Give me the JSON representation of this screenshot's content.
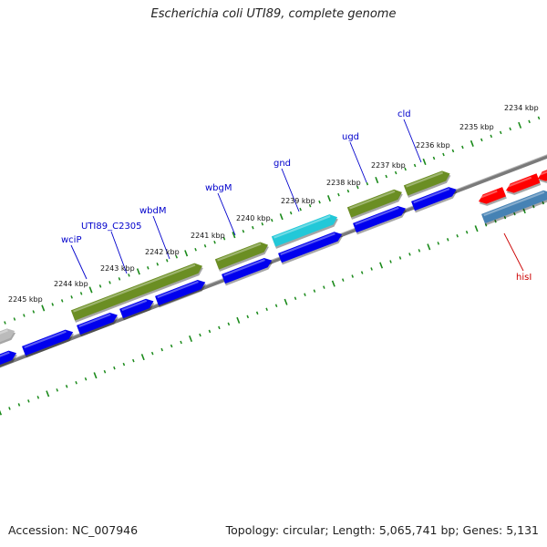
{
  "header": {
    "title": "Escherichia coli UTI89, complete genome"
  },
  "footer": {
    "accession": "Accession: NC_007946",
    "summary": "Topology: circular; Length: 5,065,741 bp; Genes: 5,131"
  },
  "colors": {
    "forward_gene": "#0000ee",
    "backbone": "#808080",
    "cds_olive": "#6b8e23",
    "cds_cyan": "#22c8d8",
    "red_gene": "#ff0000",
    "steel_gene": "#4682b4",
    "grey_gene": "#bbbbbb",
    "ticks": "#1a8a1a",
    "label_blue": "#0000cc",
    "label_red": "#cc0000"
  },
  "scale_labels": [
    {
      "text": "2234 kbp"
    },
    {
      "text": "2235 kbp"
    },
    {
      "text": "2236 kbp"
    },
    {
      "text": "2237 kbp"
    },
    {
      "text": "2238 kbp"
    },
    {
      "text": "2239 kbp"
    },
    {
      "text": "2240 kbp"
    },
    {
      "text": "2241 kbp"
    },
    {
      "text": "2242 kbp"
    },
    {
      "text": "2243 kbp"
    },
    {
      "text": "2244 kbp"
    },
    {
      "text": "2245 kbp"
    }
  ],
  "gene_labels": [
    {
      "text": "cld",
      "color": "blue"
    },
    {
      "text": "ugd",
      "color": "blue"
    },
    {
      "text": "gnd",
      "color": "blue"
    },
    {
      "text": "wbgM",
      "color": "blue"
    },
    {
      "text": "wbdM",
      "color": "blue"
    },
    {
      "text": "UTI89_C2305",
      "color": "blue"
    },
    {
      "text": "wciP",
      "color": "blue"
    },
    {
      "text": "hisI",
      "color": "red"
    }
  ]
}
